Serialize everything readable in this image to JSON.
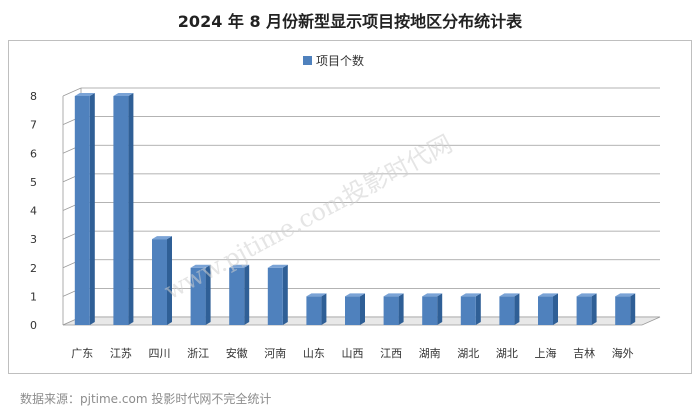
{
  "page": {
    "title": "2024 年 8 月份新型显示项目按地区分布统计表",
    "source_note": "数据来源：pjtime.com 投影时代网不完全统计",
    "watermark": "www.pjtime.com投影时代网"
  },
  "chart_data": {
    "type": "bar",
    "title": "2024 年 8 月份新型显示项目按地区分布统计表",
    "categories": [
      "广东",
      "江苏",
      "四川",
      "浙江",
      "安徽",
      "河南",
      "山东",
      "山西",
      "江西",
      "湖南",
      "湖北",
      "湖北",
      "上海",
      "吉林",
      "海外"
    ],
    "series": [
      {
        "name": "项目个数",
        "values": [
          8,
          8,
          3,
          2,
          2,
          2,
          1,
          1,
          1,
          1,
          1,
          1,
          1,
          1,
          1
        ]
      }
    ],
    "xlabel": "",
    "ylabel": "",
    "ylim": [
      0,
      8
    ],
    "yticks": [
      "0",
      "1",
      "2",
      "3",
      "4",
      "5",
      "6",
      "7",
      "8"
    ],
    "grid": true,
    "legend": "top-center",
    "bar_color": "#4f81bd",
    "bar_side_color": "#2f5f96",
    "bar_top_color": "#7aa3d6"
  }
}
